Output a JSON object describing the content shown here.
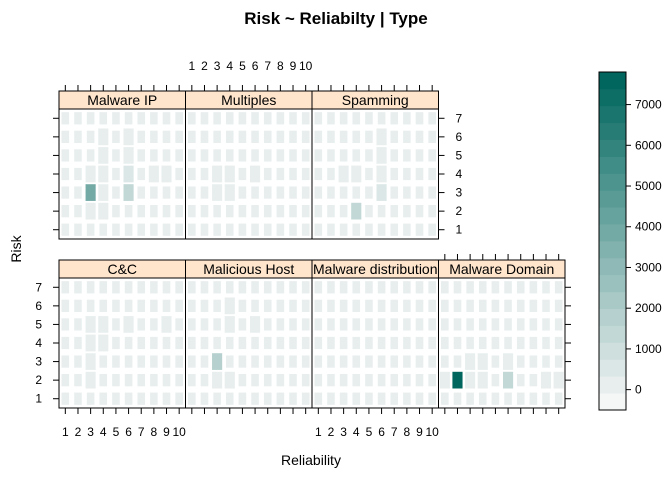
{
  "chart_data": {
    "type": "heatmap",
    "title": "Risk ~ Reliabilty | Type",
    "xlabel": "Reliability",
    "ylabel": "Risk",
    "x_ticks": [
      "1",
      "2",
      "3",
      "4",
      "5",
      "6",
      "7",
      "8",
      "9",
      "10"
    ],
    "y_ticks": [
      "1",
      "2",
      "3",
      "4",
      "5",
      "6",
      "7"
    ],
    "x_values": [
      1,
      2,
      3,
      4,
      5,
      6,
      7,
      8,
      9,
      10
    ],
    "y_values": [
      1,
      2,
      3,
      4,
      5,
      6,
      7
    ],
    "colorbar": {
      "range": [
        -500,
        7800
      ],
      "ticks": [
        "0",
        "1000",
        "2000",
        "3000",
        "4000",
        "5000",
        "6000",
        "7000"
      ],
      "tick_values": [
        0,
        1000,
        2000,
        3000,
        4000,
        5000,
        6000,
        7000
      ],
      "levels": 20,
      "color_low": "#f5f6f6",
      "color_high": "#00665e"
    },
    "panels": [
      {
        "name": "C&C",
        "row": 0,
        "col": 0,
        "cells": [
          {
            "x": 3,
            "y": 2,
            "v": 150
          },
          {
            "x": 3,
            "y": 3,
            "v": 120
          },
          {
            "x": 3,
            "y": 4,
            "v": 200
          },
          {
            "x": 4,
            "y": 4,
            "v": 130
          },
          {
            "x": 3,
            "y": 5,
            "v": 180
          },
          {
            "x": 4,
            "y": 5,
            "v": 220
          },
          {
            "x": 6,
            "y": 5,
            "v": 150
          },
          {
            "x": 9,
            "y": 5,
            "v": 140
          }
        ]
      },
      {
        "name": "Malicious Host",
        "row": 0,
        "col": 1,
        "cells": [
          {
            "x": 3,
            "y": 3,
            "v": 1800
          },
          {
            "x": 3,
            "y": 2,
            "v": 250
          },
          {
            "x": 4,
            "y": 2,
            "v": 120
          },
          {
            "x": 4,
            "y": 5,
            "v": 180
          },
          {
            "x": 4,
            "y": 6,
            "v": 150
          },
          {
            "x": 6,
            "y": 5,
            "v": 120
          }
        ]
      },
      {
        "name": "Malware distribution",
        "row": 0,
        "col": 2,
        "cells": []
      },
      {
        "name": "Malware Domain",
        "row": 0,
        "col": 3,
        "cells": [
          {
            "x": 2,
            "y": 2,
            "v": 7600
          },
          {
            "x": 1,
            "y": 2,
            "v": 150
          },
          {
            "x": 3,
            "y": 2,
            "v": 200
          },
          {
            "x": 4,
            "y": 2,
            "v": 150
          },
          {
            "x": 6,
            "y": 2,
            "v": 1400
          },
          {
            "x": 9,
            "y": 2,
            "v": 250
          },
          {
            "x": 10,
            "y": 2,
            "v": 150
          },
          {
            "x": 3,
            "y": 3,
            "v": 150
          },
          {
            "x": 4,
            "y": 3,
            "v": 120
          },
          {
            "x": 6,
            "y": 3,
            "v": 120
          }
        ]
      },
      {
        "name": "Malware IP",
        "row": 1,
        "col": 0,
        "cells": [
          {
            "x": 3,
            "y": 3,
            "v": 3700
          },
          {
            "x": 6,
            "y": 3,
            "v": 1300
          },
          {
            "x": 3,
            "y": 2,
            "v": 150
          },
          {
            "x": 4,
            "y": 2,
            "v": 120
          },
          {
            "x": 3,
            "y": 4,
            "v": 250
          },
          {
            "x": 4,
            "y": 4,
            "v": 300
          },
          {
            "x": 6,
            "y": 4,
            "v": 400
          },
          {
            "x": 8,
            "y": 4,
            "v": 220
          },
          {
            "x": 9,
            "y": 4,
            "v": 250
          },
          {
            "x": 4,
            "y": 5,
            "v": 200
          },
          {
            "x": 6,
            "y": 5,
            "v": 220
          },
          {
            "x": 4,
            "y": 6,
            "v": 300
          },
          {
            "x": 6,
            "y": 6,
            "v": 200
          },
          {
            "x": 4,
            "y": 3,
            "v": 150
          }
        ]
      },
      {
        "name": "Multiples",
        "row": 1,
        "col": 1,
        "cells": [
          {
            "x": 3,
            "y": 3,
            "v": 200
          },
          {
            "x": 4,
            "y": 3,
            "v": 150
          },
          {
            "x": 3,
            "y": 4,
            "v": 200
          },
          {
            "x": 4,
            "y": 4,
            "v": 150
          },
          {
            "x": 6,
            "y": 4,
            "v": 150
          }
        ]
      },
      {
        "name": "Spamming",
        "row": 1,
        "col": 2,
        "cells": [
          {
            "x": 4,
            "y": 2,
            "v": 1300
          },
          {
            "x": 6,
            "y": 3,
            "v": 700
          },
          {
            "x": 3,
            "y": 4,
            "v": 150
          },
          {
            "x": 4,
            "y": 4,
            "v": 220
          },
          {
            "x": 6,
            "y": 4,
            "v": 250
          },
          {
            "x": 6,
            "y": 5,
            "v": 180
          },
          {
            "x": 6,
            "y": 6,
            "v": 120
          }
        ]
      }
    ]
  }
}
